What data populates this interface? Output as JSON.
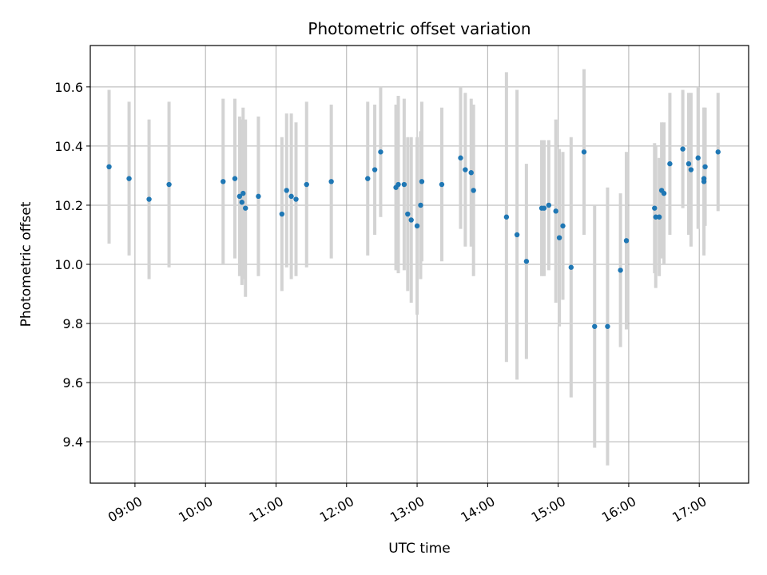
{
  "chart_data": {
    "type": "scatter",
    "title": "Photometric offset variation",
    "xlabel": "UTC time",
    "ylabel": "Photometric offset",
    "grid": true,
    "colors": {
      "point": "#1f77b4",
      "errorbar": "#d3d3d3",
      "grid": "#b0b0b0"
    },
    "xlim": [
      "08:22",
      "17:42"
    ],
    "ylim": [
      9.26,
      10.74
    ],
    "x_ticks": [
      "09:00",
      "10:00",
      "11:00",
      "12:00",
      "13:00",
      "14:00",
      "15:00",
      "16:00",
      "17:00"
    ],
    "y_ticks": [
      "9.4",
      "9.6",
      "9.8",
      "10.0",
      "10.2",
      "10.4",
      "10.6"
    ],
    "series": [
      {
        "x": [
          "08:38",
          "08:55",
          "09:12",
          "09:29",
          "10:15",
          "10:25",
          "10:29",
          "10:31",
          "10:32",
          "10:34",
          "10:45",
          "11:05",
          "11:09",
          "11:13",
          "11:17",
          "11:26",
          "11:47",
          "12:18",
          "12:24",
          "12:29",
          "12:42",
          "12:44",
          "12:49",
          "12:52",
          "12:55",
          "13:00",
          "13:03",
          "13:04",
          "13:21",
          "13:37",
          "13:41",
          "13:46",
          "13:48",
          "14:16",
          "14:25",
          "14:33",
          "14:46",
          "14:48",
          "14:52",
          "14:58",
          "15:01",
          "15:04",
          "15:11",
          "15:22",
          "15:31",
          "15:42",
          "15:53",
          "15:58",
          "16:22",
          "16:23",
          "16:26",
          "16:28",
          "16:30",
          "16:35",
          "16:46",
          "16:51",
          "16:53",
          "16:59",
          "17:04",
          "17:04",
          "17:05",
          "17:16"
        ],
        "y": [
          10.33,
          10.29,
          10.22,
          10.27,
          10.28,
          10.29,
          10.23,
          10.21,
          10.24,
          10.19,
          10.23,
          10.17,
          10.25,
          10.23,
          10.22,
          10.27,
          10.28,
          10.29,
          10.32,
          10.38,
          10.26,
          10.27,
          10.27,
          10.17,
          10.15,
          10.13,
          10.2,
          10.28,
          10.27,
          10.36,
          10.32,
          10.31,
          10.25,
          10.16,
          10.1,
          10.01,
          10.19,
          10.19,
          10.2,
          10.18,
          10.09,
          10.13,
          9.99,
          10.38,
          9.79,
          9.79,
          9.98,
          10.08,
          10.19,
          10.16,
          10.16,
          10.25,
          10.24,
          10.34,
          10.39,
          10.34,
          10.32,
          10.36,
          10.29,
          10.28,
          10.33,
          10.38
        ],
        "err": [
          0.26,
          0.26,
          0.27,
          0.28,
          0.28,
          0.27,
          0.27,
          0.28,
          0.29,
          0.3,
          0.27,
          0.26,
          0.26,
          0.28,
          0.26,
          0.28,
          0.26,
          0.26,
          0.22,
          0.22,
          0.28,
          0.3,
          0.29,
          0.26,
          0.28,
          0.3,
          0.25,
          0.27,
          0.26,
          0.24,
          0.26,
          0.25,
          0.29,
          0.49,
          0.49,
          0.33,
          0.23,
          0.23,
          0.22,
          0.31,
          0.3,
          0.25,
          0.44,
          0.28,
          0.41,
          0.47,
          0.26,
          0.3,
          0.22,
          0.24,
          0.2,
          0.23,
          0.24,
          0.24,
          0.2,
          0.24,
          0.26,
          0.24,
          0.24,
          0.25,
          0.2,
          0.2
        ]
      }
    ]
  }
}
